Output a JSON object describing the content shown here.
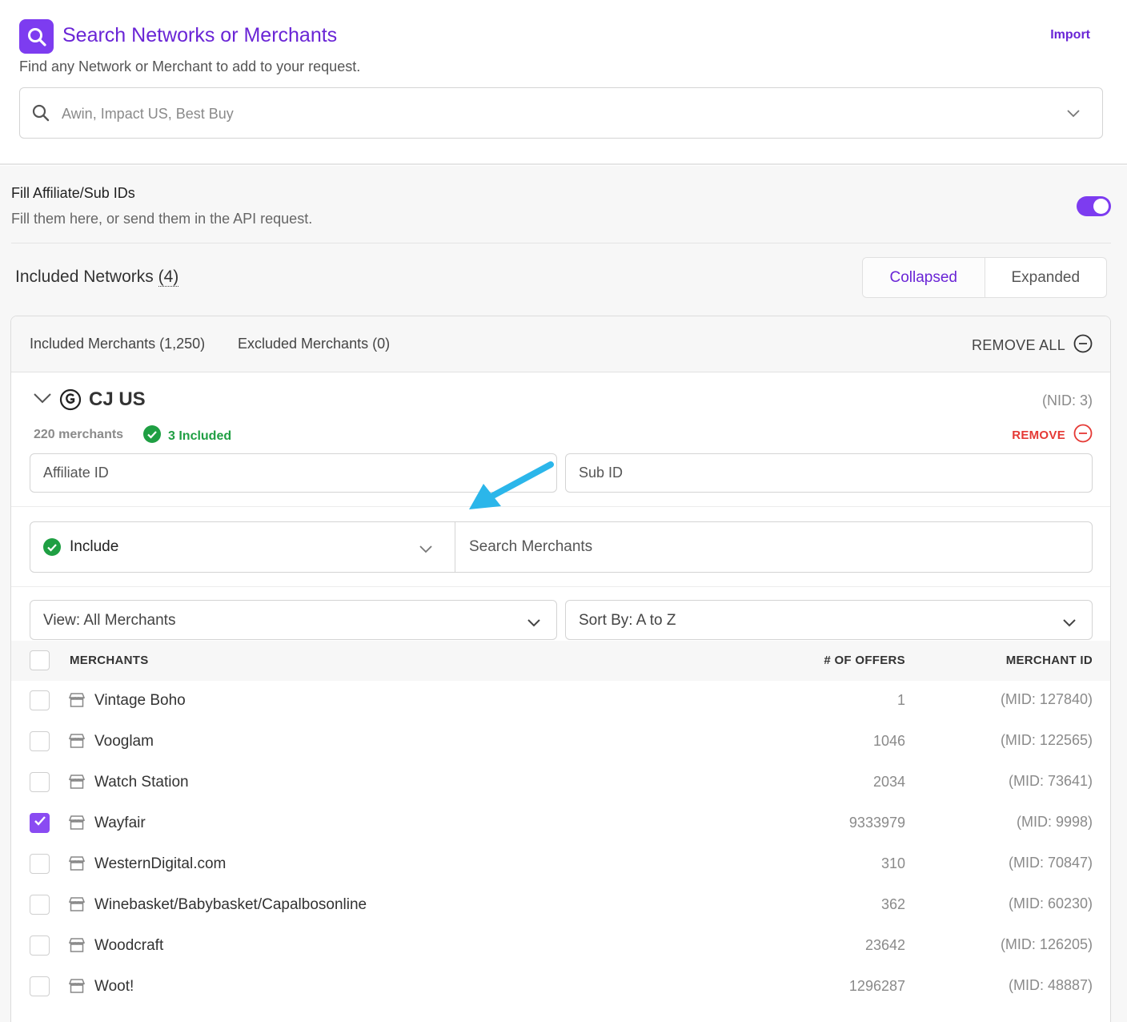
{
  "header": {
    "title": "Search Networks or Merchants",
    "subtitle": "Find any Network or Merchant to add to your request.",
    "import_label": "Import",
    "search_placeholder": "Awin, Impact US, Best Buy",
    "accent_color": "#7d3cf0"
  },
  "fill_ids": {
    "title": "Fill Affiliate/Sub IDs",
    "subtitle": "Fill them here, or send them in the API request.",
    "toggle_on": true
  },
  "included_networks": {
    "title_prefix": "Included Networks ",
    "count_text": "(4)",
    "view_options": [
      "Collapsed",
      "Expanded"
    ],
    "active_view": "Collapsed"
  },
  "card": {
    "tab_included": "Included Merchants (1,250)",
    "tab_excluded": "Excluded Merchants (0)",
    "remove_all_label": "REMOVE ALL",
    "network": {
      "name": "CJ US",
      "nid": "(NID: 3)",
      "merchant_count": "220 merchants",
      "included_text": "3 Included",
      "remove_label": "REMOVE"
    },
    "affiliate_placeholder": "Affiliate ID",
    "subid_placeholder": "Sub ID",
    "include_mode": "Include",
    "merchant_search_placeholder": "Search Merchants",
    "view_filter": "View: All Merchants",
    "sort_filter": "Sort By: A to Z",
    "columns": {
      "merchants": "MERCHANTS",
      "offers": "# OF OFFERS",
      "merchant_id": "MERCHANT ID"
    },
    "rows": [
      {
        "name": "Vintage Boho",
        "offers": "1",
        "mid": "(MID: 127840)",
        "checked": false
      },
      {
        "name": "Vooglam",
        "offers": "1046",
        "mid": "(MID: 122565)",
        "checked": false
      },
      {
        "name": "Watch Station",
        "offers": "2034",
        "mid": "(MID: 73641)",
        "checked": false
      },
      {
        "name": "Wayfair",
        "offers": "9333979",
        "mid": "(MID: 9998)",
        "checked": true
      },
      {
        "name": "WesternDigital.com",
        "offers": "310",
        "mid": "(MID: 70847)",
        "checked": false
      },
      {
        "name": "Winebasket/Babybasket/Capalbosonline",
        "offers": "362",
        "mid": "(MID: 60230)",
        "checked": false
      },
      {
        "name": "Woodcraft",
        "offers": "23642",
        "mid": "(MID: 126205)",
        "checked": false
      },
      {
        "name": "Woot!",
        "offers": "1296287",
        "mid": "(MID: 48887)",
        "checked": false
      }
    ]
  },
  "colors": {
    "purple": "#6a25d6",
    "green": "#1f9f43",
    "red": "#e53935",
    "arrow": "#2bb6ea"
  }
}
